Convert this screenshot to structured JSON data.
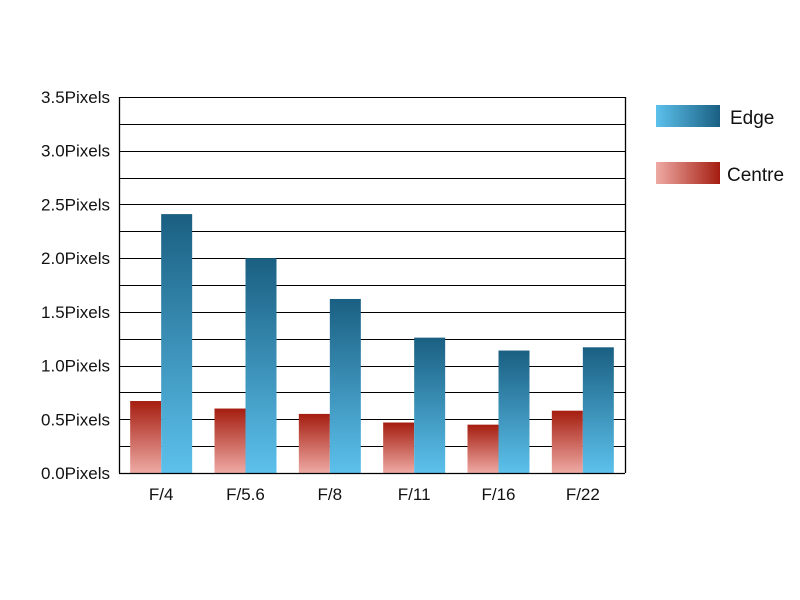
{
  "chart_data": {
    "type": "bar",
    "categories": [
      "F/4",
      "F/5.6",
      "F/8",
      "F/11",
      "F/16",
      "F/22"
    ],
    "series": [
      {
        "name": "Centre",
        "values": [
          0.67,
          0.6,
          0.55,
          0.47,
          0.45,
          0.58
        ],
        "colors": {
          "top": "#a51d10",
          "bottom": "#eeaaa4"
        }
      },
      {
        "name": "Edge",
        "values": [
          2.41,
          2.0,
          1.62,
          1.26,
          1.14,
          1.17
        ],
        "colors": {
          "top": "#1a5f82",
          "bottom": "#5cc1ec"
        }
      }
    ],
    "y_tick_labels": [
      "0.0Pixels",
      "0.5Pixels",
      "1.0Pixels",
      "1.5Pixels",
      "2.0Pixels",
      "2.5Pixels",
      "3.0Pixels",
      "3.5Pixels"
    ],
    "ylim": [
      0,
      3.5
    ],
    "grid": true,
    "gridline_step": 0.25,
    "legend": {
      "placement": "top-right",
      "order": [
        "Edge",
        "Centre"
      ]
    }
  }
}
